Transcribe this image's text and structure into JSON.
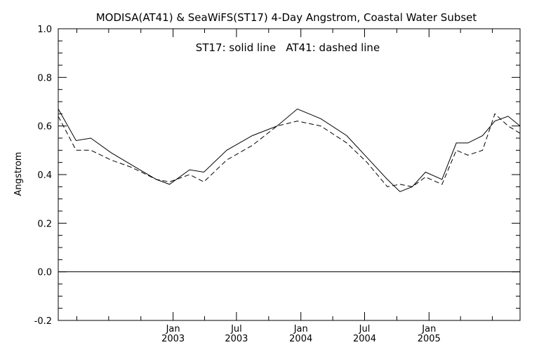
{
  "chart_data": {
    "type": "line",
    "title": "MODISA(AT41) & SeaWiFS(ST17) 4-Day Angstrom, Coastal Water Subset",
    "annotation": "ST17: solid line   AT41: dashed line",
    "xlabel": "",
    "ylabel": "Angstrom",
    "ylim": [
      -0.2,
      1.0
    ],
    "yticks": [
      "1.0",
      "0.8",
      "0.6",
      "0.4",
      "0.2",
      "0.0",
      "-0.2"
    ],
    "xlim": [
      "2002-02-07",
      "2005-09-18"
    ],
    "xticks": [
      {
        "month": "Jan",
        "year": "2003",
        "date": "2003-01-01"
      },
      {
        "month": "Jul",
        "year": "2003",
        "date": "2003-07-01"
      },
      {
        "month": "Jan",
        "year": "2004",
        "date": "2004-01-01"
      },
      {
        "month": "Jul",
        "year": "2004",
        "date": "2004-07-01"
      },
      {
        "month": "Jan",
        "year": "2005",
        "date": "2005-01-01"
      }
    ],
    "zero_line": true,
    "grid": false,
    "series": [
      {
        "name": "ST17",
        "style": "solid",
        "color": "#000000",
        "points": [
          [
            "2002-02-07",
            0.67
          ],
          [
            "2002-03-30",
            0.54
          ],
          [
            "2002-05-11",
            0.55
          ],
          [
            "2002-07-08",
            0.49
          ],
          [
            "2002-09-04",
            0.44
          ],
          [
            "2002-11-14",
            0.38
          ],
          [
            "2002-12-22",
            0.36
          ],
          [
            "2003-02-17",
            0.42
          ],
          [
            "2003-03-30",
            0.41
          ],
          [
            "2003-06-03",
            0.5
          ],
          [
            "2003-08-15",
            0.56
          ],
          [
            "2003-10-25",
            0.6
          ],
          [
            "2003-12-22",
            0.67
          ],
          [
            "2004-02-27",
            0.63
          ],
          [
            "2004-05-11",
            0.56
          ],
          [
            "2004-07-08",
            0.47
          ],
          [
            "2004-09-04",
            0.38
          ],
          [
            "2004-10-10",
            0.33
          ],
          [
            "2004-11-14",
            0.35
          ],
          [
            "2004-12-22",
            0.41
          ],
          [
            "2005-02-07",
            0.38
          ],
          [
            "2005-03-20",
            0.53
          ],
          [
            "2005-04-22",
            0.53
          ],
          [
            "2005-06-03",
            0.56
          ],
          [
            "2005-07-08",
            0.62
          ],
          [
            "2005-08-15",
            0.64
          ],
          [
            "2005-09-18",
            0.6
          ]
        ]
      },
      {
        "name": "AT41",
        "style": "dashed",
        "color": "#000000",
        "points": [
          [
            "2002-02-07",
            0.64
          ],
          [
            "2002-03-30",
            0.5
          ],
          [
            "2002-05-11",
            0.5
          ],
          [
            "2002-07-08",
            0.46
          ],
          [
            "2002-09-04",
            0.43
          ],
          [
            "2002-11-14",
            0.38
          ],
          [
            "2002-12-22",
            0.37
          ],
          [
            "2003-02-17",
            0.4
          ],
          [
            "2003-03-30",
            0.37
          ],
          [
            "2003-06-03",
            0.46
          ],
          [
            "2003-08-15",
            0.52
          ],
          [
            "2003-10-25",
            0.6
          ],
          [
            "2003-12-22",
            0.62
          ],
          [
            "2004-02-27",
            0.6
          ],
          [
            "2004-05-11",
            0.53
          ],
          [
            "2004-07-08",
            0.45
          ],
          [
            "2004-09-04",
            0.35
          ],
          [
            "2004-10-10",
            0.36
          ],
          [
            "2004-11-14",
            0.35
          ],
          [
            "2004-12-22",
            0.39
          ],
          [
            "2005-02-07",
            0.36
          ],
          [
            "2005-03-20",
            0.5
          ],
          [
            "2005-04-22",
            0.48
          ],
          [
            "2005-06-03",
            0.5
          ],
          [
            "2005-07-08",
            0.65
          ],
          [
            "2005-08-15",
            0.6
          ],
          [
            "2005-09-18",
            0.57
          ]
        ]
      }
    ]
  }
}
